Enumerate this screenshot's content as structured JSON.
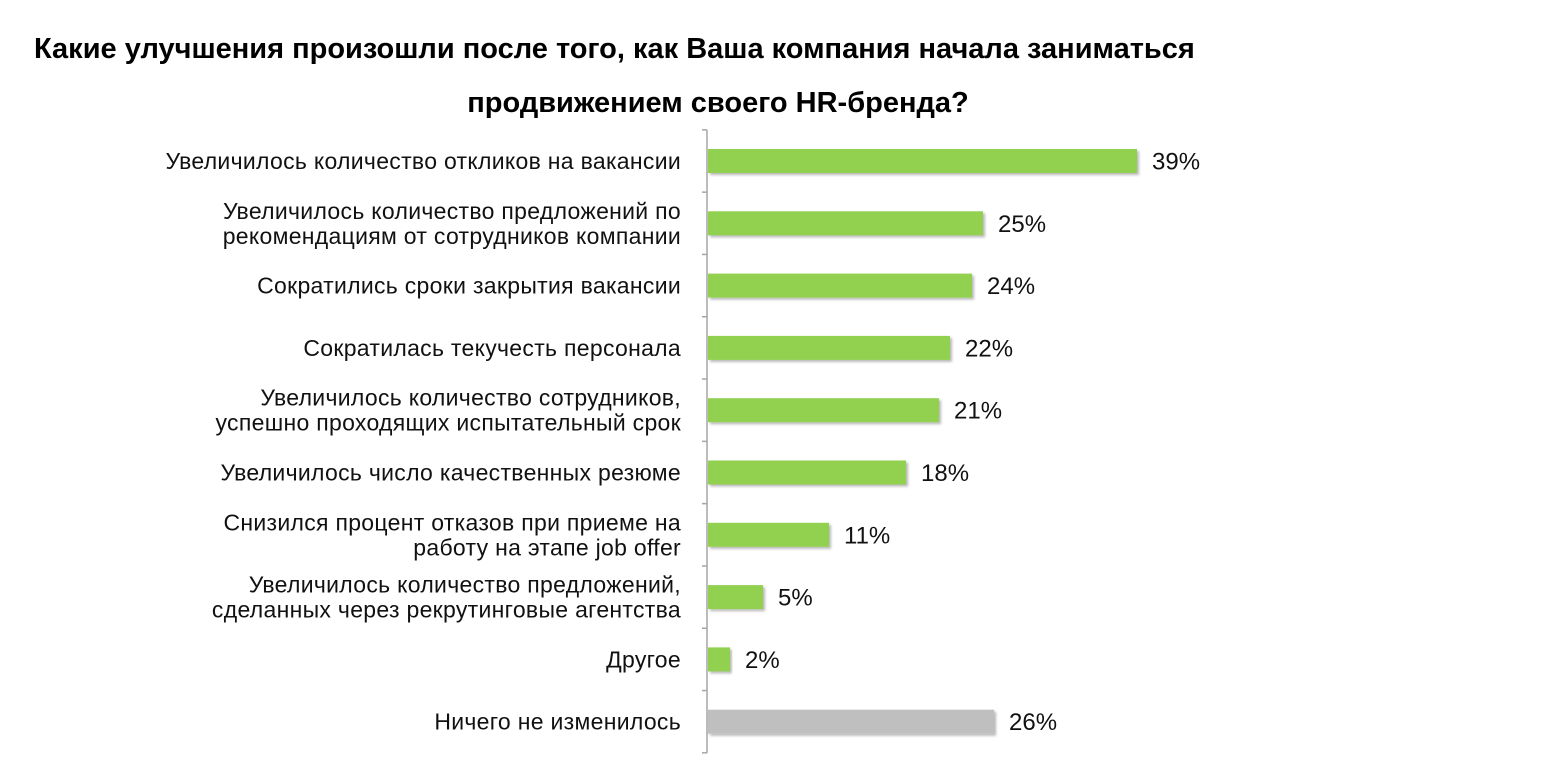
{
  "chart_data": {
    "type": "bar",
    "orientation": "horizontal",
    "title_lines": [
      "Какие улучшения произошли после того, как Ваша компания начала заниматься",
      "продвижением своего HR-бренда?"
    ],
    "categories": [
      [
        "Увеличилось количество откликов на вакансии"
      ],
      [
        "Увеличилось количество предложений по",
        "рекомендациям от сотрудников компании"
      ],
      [
        "Сократились сроки закрытия вакансии"
      ],
      [
        "Сократилась текучесть персонала"
      ],
      [
        "Увеличилось количество сотрудников,",
        "успешно проходящих испытательный срок"
      ],
      [
        "Увеличилось число качественных резюме"
      ],
      [
        "Снизился процент отказов при приеме на",
        "работу на этапе job offer"
      ],
      [
        "Увеличилось количество предложений,",
        "сделанных через рекрутинговые агентства"
      ],
      [
        "Другое"
      ],
      [
        "Ничего не изменилось"
      ]
    ],
    "values": [
      39,
      25,
      24,
      22,
      21,
      18,
      11,
      5,
      2,
      26
    ],
    "value_labels": [
      "39%",
      "25%",
      "24%",
      "22%",
      "21%",
      "18%",
      "11%",
      "5%",
      "2%",
      "26%"
    ],
    "bar_colors": [
      "#92d050",
      "#92d050",
      "#92d050",
      "#92d050",
      "#92d050",
      "#92d050",
      "#92d050",
      "#92d050",
      "#92d050",
      "#bfbfbf"
    ],
    "xlim": [
      0,
      100
    ],
    "grid": false,
    "legend": "none"
  }
}
